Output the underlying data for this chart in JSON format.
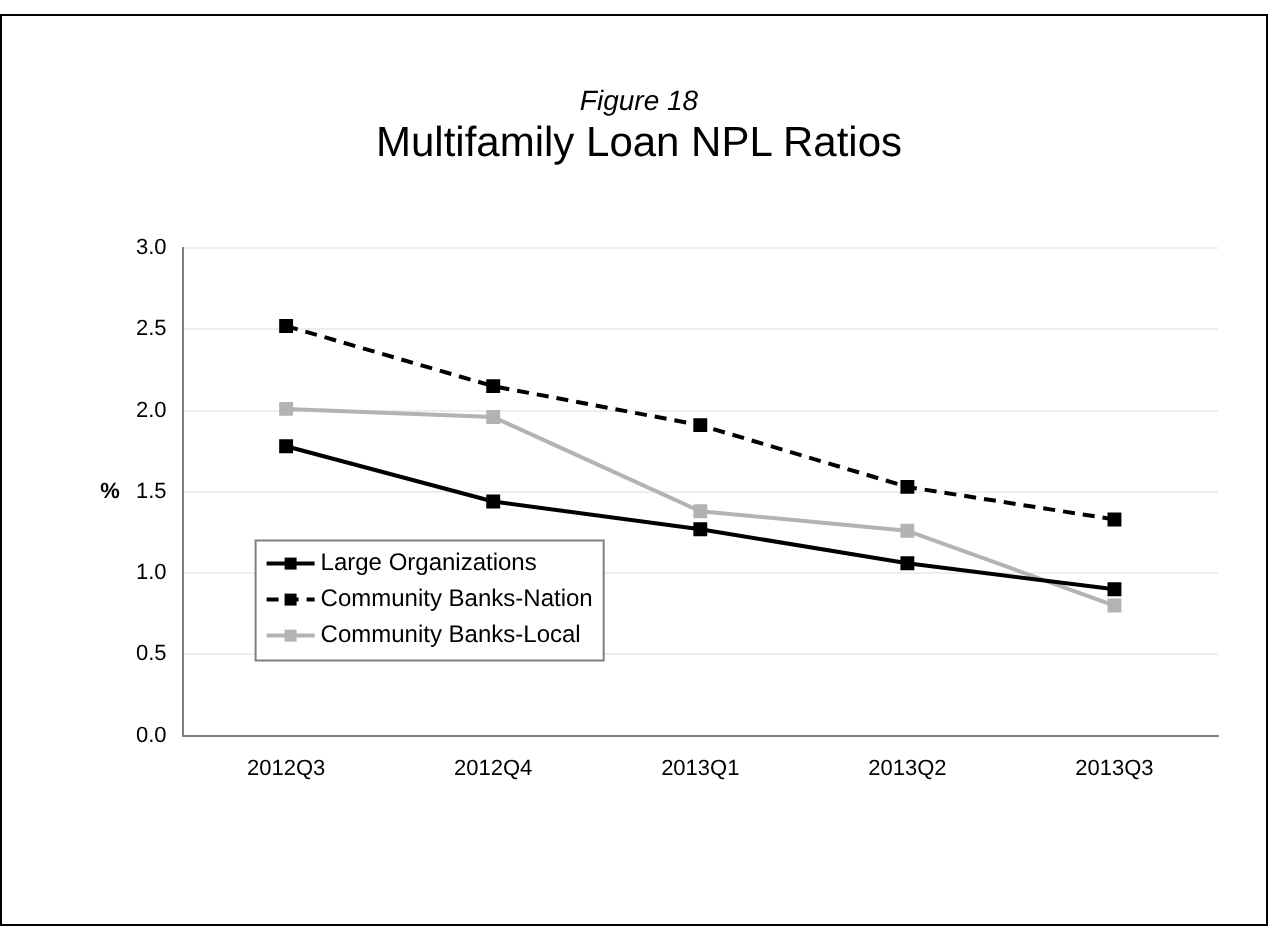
{
  "chart_data": {
    "type": "line",
    "subtitle": "Figure 18",
    "title": "Multifamily Loan NPL Ratios",
    "ylabel": "%",
    "categories": [
      "2012Q3",
      "2012Q4",
      "2013Q1",
      "2013Q2",
      "2013Q3"
    ],
    "series": [
      {
        "name": "Large Organizations",
        "color": "#000000",
        "line_style": "solid",
        "values": [
          1.78,
          1.44,
          1.27,
          1.06,
          0.9
        ]
      },
      {
        "name": "Community Banks-Nation",
        "color": "#000000",
        "line_style": "dashed",
        "values": [
          2.52,
          2.15,
          1.91,
          1.53,
          1.33
        ]
      },
      {
        "name": "Community Banks-Local",
        "color": "#b3b3b3",
        "line_style": "solid",
        "values": [
          2.01,
          1.96,
          1.38,
          1.26,
          0.8
        ]
      }
    ],
    "ylim": [
      0,
      3
    ],
    "yticks": [
      {
        "value": 0,
        "label": "0.0"
      },
      {
        "value": 0.5,
        "label": "0.5"
      },
      {
        "value": 1,
        "label": "1.0"
      },
      {
        "value": 1.5,
        "label": "1.5"
      },
      {
        "value": 2,
        "label": "2.0"
      },
      {
        "value": 2.5,
        "label": "2.5"
      },
      {
        "value": 3,
        "label": "3.0"
      }
    ],
    "grid": "y",
    "marker": "square",
    "legend": "bottom left"
  }
}
